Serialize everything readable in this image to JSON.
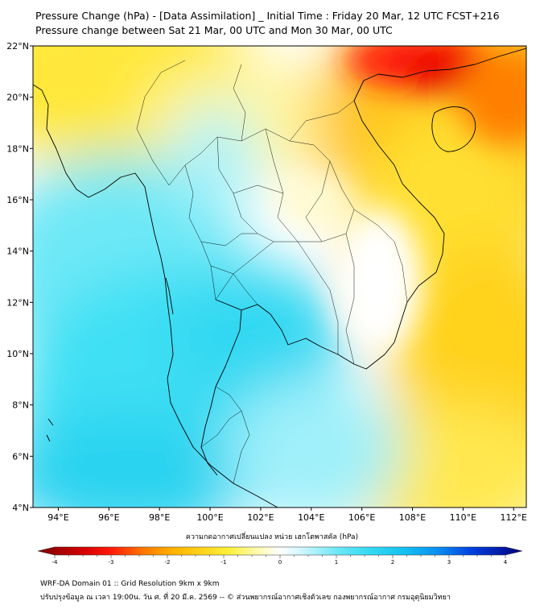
{
  "header": {
    "title_line1": "Pressure Change (hPa) - [Data Assimilation] _ Initial Time : Friday 20 Mar, 12 UTC FCST+216",
    "title_line2": "Pressure change between Sat 21 Mar, 00 UTC and Mon 30 Mar, 00 UTC"
  },
  "map": {
    "lat_range": [
      4,
      22
    ],
    "lon_range": [
      93,
      112.5
    ],
    "lat_ticks": [
      {
        "value": 4,
        "label": "4°N"
      },
      {
        "value": 6,
        "label": "6°N"
      },
      {
        "value": 8,
        "label": "8°N"
      },
      {
        "value": 10,
        "label": "10°N"
      },
      {
        "value": 12,
        "label": "12°N"
      },
      {
        "value": 14,
        "label": "14°N"
      },
      {
        "value": 16,
        "label": "16°N"
      },
      {
        "value": 18,
        "label": "18°N"
      },
      {
        "value": 20,
        "label": "20°N"
      },
      {
        "value": 22,
        "label": "22°N"
      }
    ],
    "lon_ticks": [
      {
        "value": 94,
        "label": "94°E"
      },
      {
        "value": 96,
        "label": "96°E"
      },
      {
        "value": 98,
        "label": "98°E"
      },
      {
        "value": 100,
        "label": "100°E"
      },
      {
        "value": 102,
        "label": "102°E"
      },
      {
        "value": 104,
        "label": "104°E"
      },
      {
        "value": 106,
        "label": "106°E"
      },
      {
        "value": 108,
        "label": "108°E"
      },
      {
        "value": 110,
        "label": "110°E"
      },
      {
        "value": 112,
        "label": "112°E"
      }
    ],
    "field_regions": [
      {
        "region": "south-china-north-vietnam",
        "value": -3.5,
        "color": "#ff1a0a"
      },
      {
        "region": "gulf-of-tonkin-south-china",
        "value": -2.3,
        "color": "#ffb300"
      },
      {
        "region": "northern-myanmar-laos",
        "value": -1.5,
        "color": "#ffe83a"
      },
      {
        "region": "east-sea-south",
        "value": -1.2,
        "color": "#ffe65a"
      },
      {
        "region": "cambodia-inland",
        "value": 0.3,
        "color": "#e8fbff"
      },
      {
        "region": "andaman-sea-gulf-of-thailand",
        "value": 1.8,
        "color": "#40e6f4"
      },
      {
        "region": "malay-peninsula-south",
        "value": 2.2,
        "color": "#2ad3f0"
      }
    ]
  },
  "colorbar": {
    "title": "ความกดอากาศเปลี่ยนแปลง หน่วย เฮกโตพาสคัล (hPa)",
    "range": [
      -4,
      4
    ],
    "tick_labels": [
      {
        "value": -4,
        "label": "-4"
      },
      {
        "value": -3,
        "label": "-3"
      },
      {
        "value": -2,
        "label": "-2"
      },
      {
        "value": -1,
        "label": "-1"
      },
      {
        "value": 0,
        "label": "0"
      },
      {
        "value": 1,
        "label": "1"
      },
      {
        "value": 2,
        "label": "2"
      },
      {
        "value": 3,
        "label": "3"
      },
      {
        "value": 4,
        "label": "4"
      }
    ],
    "colors": [
      {
        "value": -4.3,
        "color": "#7a0000"
      },
      {
        "value": -3.5,
        "color": "#d40000"
      },
      {
        "value": -3.0,
        "color": "#ff1a0a"
      },
      {
        "value": -2.4,
        "color": "#ff7a00"
      },
      {
        "value": -1.9,
        "color": "#ffb300"
      },
      {
        "value": -1.4,
        "color": "#ffd21a"
      },
      {
        "value": -0.9,
        "color": "#fff03c"
      },
      {
        "value": -0.4,
        "color": "#fffab0"
      },
      {
        "value": 0,
        "color": "#ffffff"
      },
      {
        "value": 0.4,
        "color": "#ccf6ff"
      },
      {
        "value": 1.0,
        "color": "#6ee8f6"
      },
      {
        "value": 1.6,
        "color": "#33d9f2"
      },
      {
        "value": 2.2,
        "color": "#14c2f0"
      },
      {
        "value": 2.8,
        "color": "#0a8ff0"
      },
      {
        "value": 3.4,
        "color": "#0040e0"
      },
      {
        "value": 4.3,
        "color": "#00007a"
      }
    ]
  },
  "footer": {
    "line1": "WRF-DA Domain 01 :: Grid Resolution 9km x 9km",
    "line2": "ปรับปรุงข้อมูล ณ เวลา 19:00น. วัน ศ. ที่ 20 มี.ค. 2569 -- © ส่วนพยากรณ์อากาศเชิงตัวเลข กองพยากรณ์อากาศ กรมอุตุนิยมวิทยา"
  }
}
